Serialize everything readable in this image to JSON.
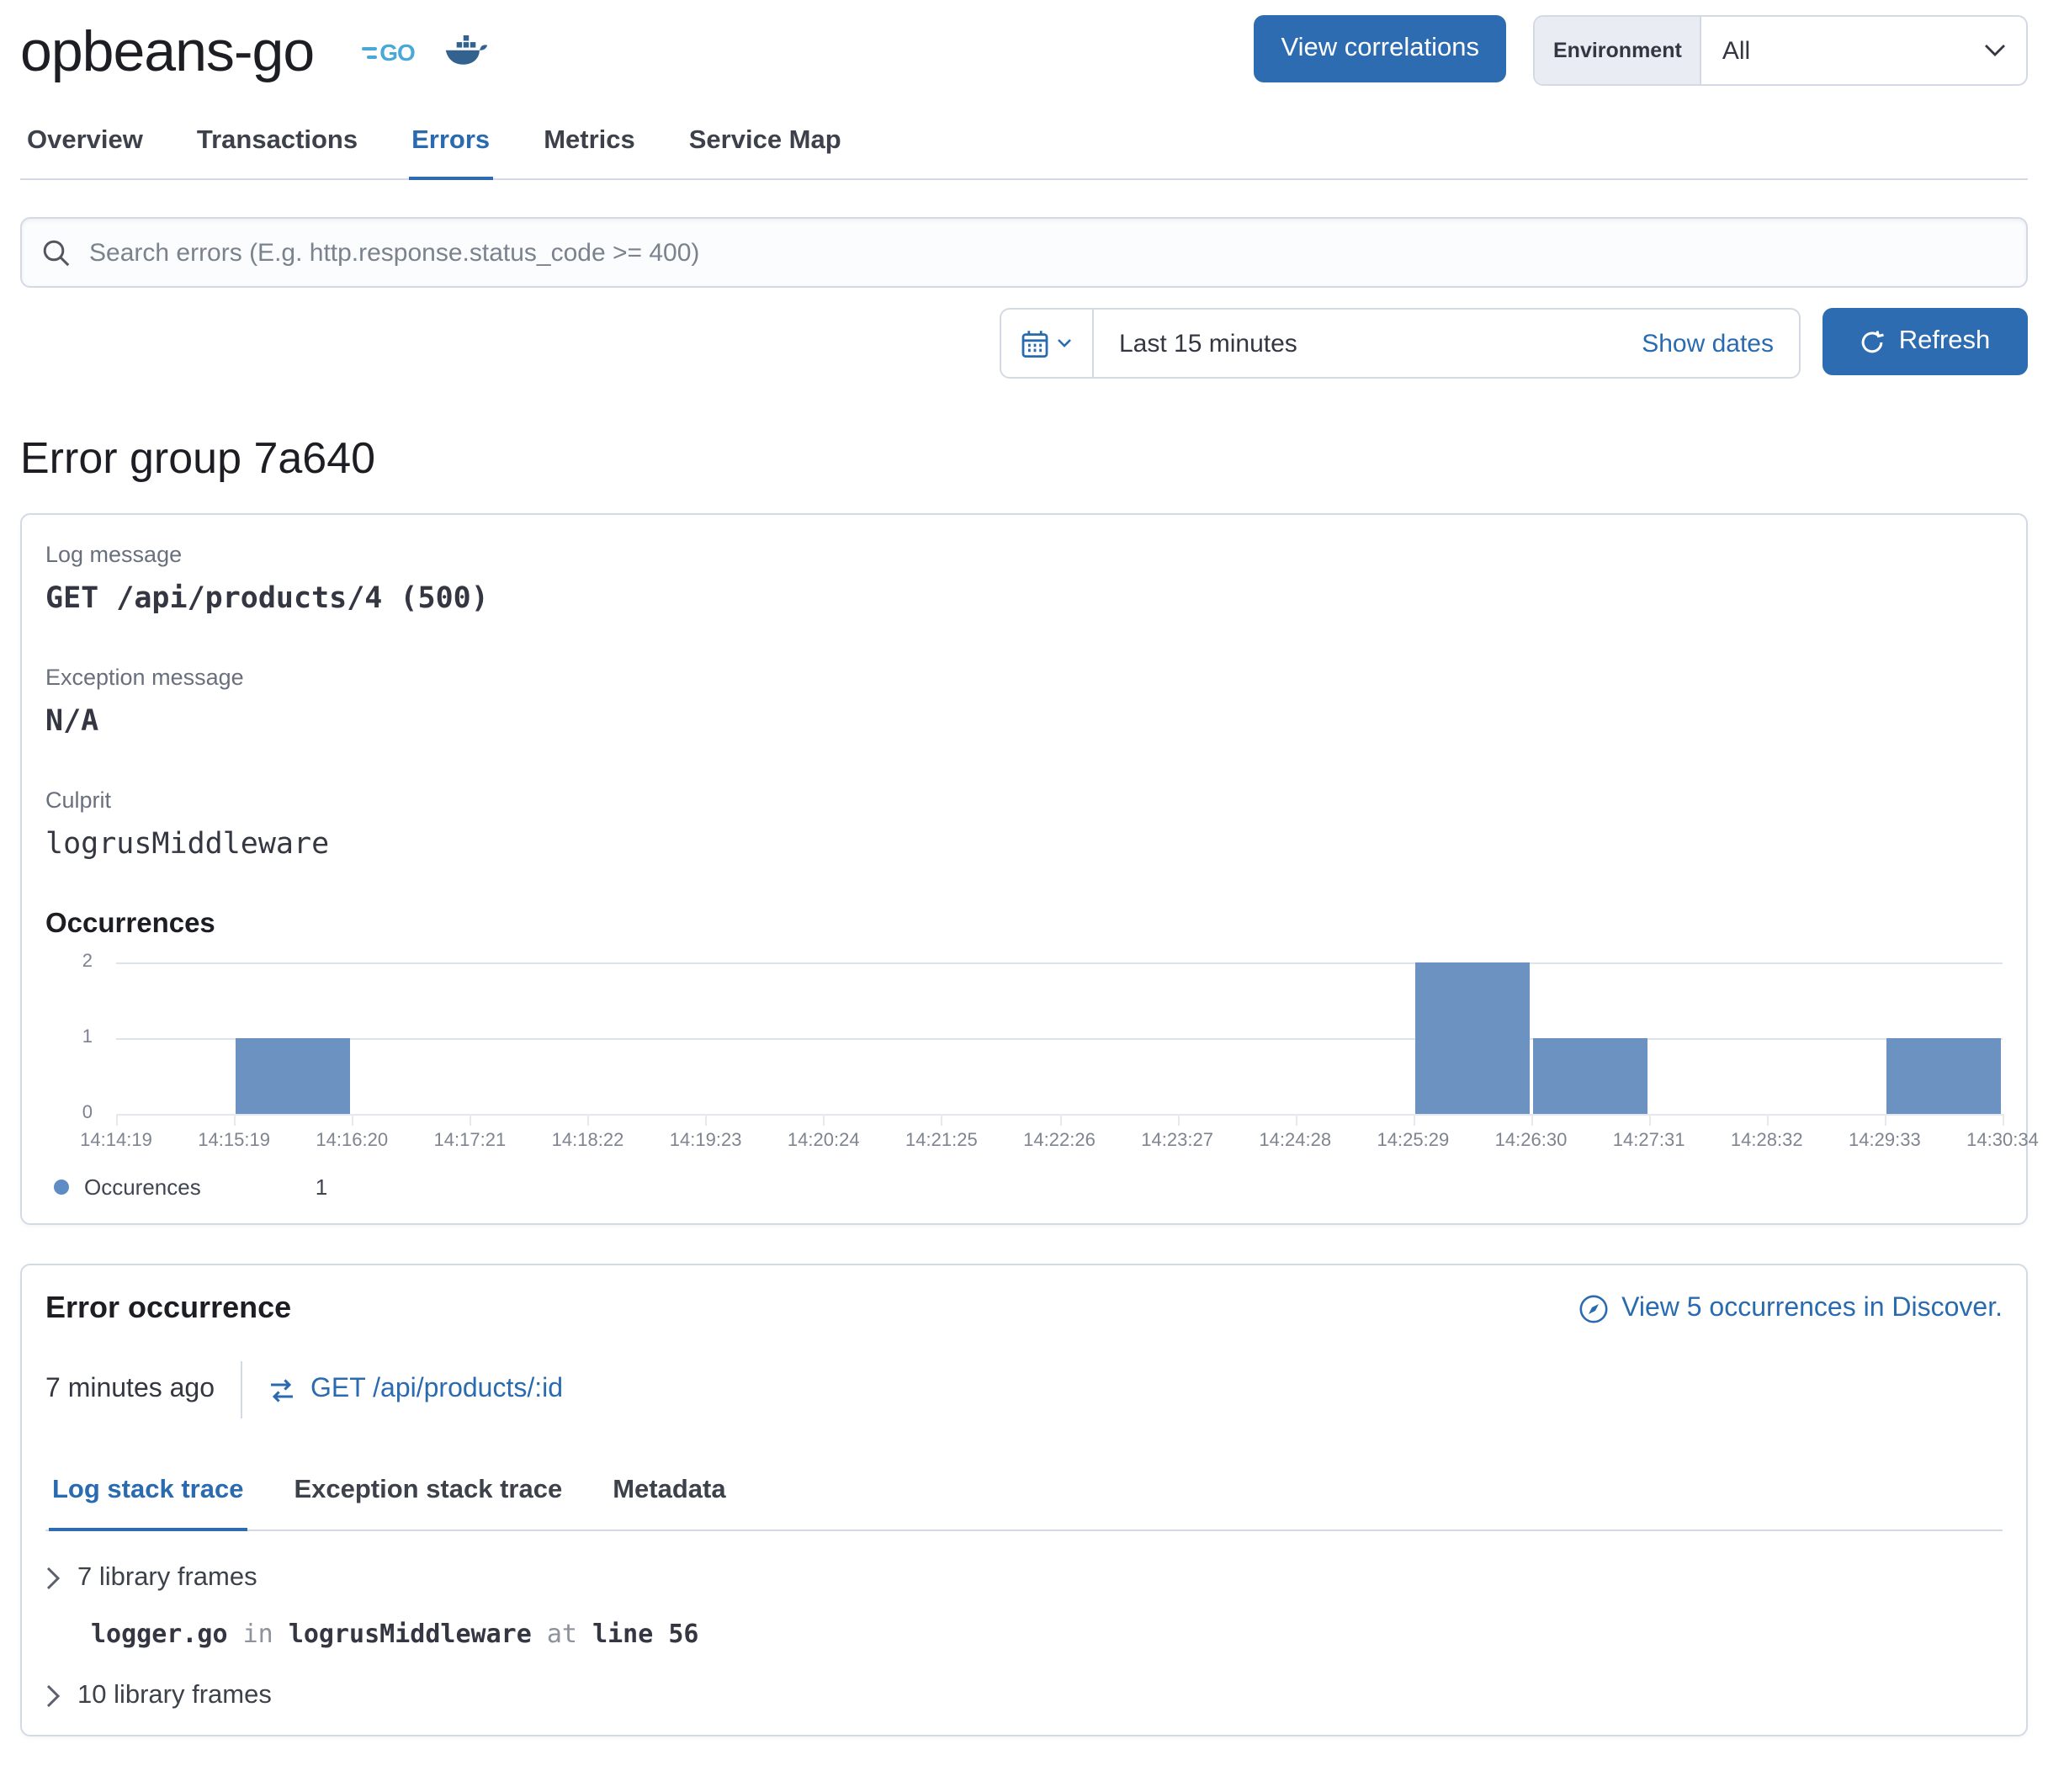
{
  "header": {
    "service_name": "opbeans-go",
    "view_correlations_label": "View correlations",
    "environment_label": "Environment",
    "environment_value": "All"
  },
  "header_tabs": [
    "Overview",
    "Transactions",
    "Errors",
    "Metrics",
    "Service Map"
  ],
  "search": {
    "placeholder": "Search errors (E.g. http.response.status_code >= 400)"
  },
  "datepicker": {
    "range_label": "Last 15 minutes",
    "show_dates_label": "Show dates",
    "refresh_label": "Refresh"
  },
  "page_title": "Error group 7a640",
  "error_group": {
    "log_message_label": "Log message",
    "log_message": "GET /api/products/4 (500)",
    "exception_message_label": "Exception message",
    "exception_message": "N/A",
    "culprit_label": "Culprit",
    "culprit": "logrusMiddleware",
    "occurrences_title": "Occurrences"
  },
  "chart_data": {
    "type": "bar",
    "title": "Occurrences",
    "x_tick_labels": [
      "14:14:19",
      "14:15:19",
      "14:16:20",
      "14:17:21",
      "14:18:22",
      "14:19:23",
      "14:20:24",
      "14:21:25",
      "14:22:26",
      "14:23:27",
      "14:24:28",
      "14:25:29",
      "14:26:30",
      "14:27:31",
      "14:28:32",
      "14:29:33",
      "14:30:34"
    ],
    "values": [
      0,
      1,
      0,
      0,
      0,
      0,
      0,
      0,
      0,
      0,
      0,
      2,
      1,
      0,
      0,
      1
    ],
    "ylim": [
      0,
      2
    ],
    "y_ticks": [
      0,
      1,
      2
    ],
    "grid": "horizontal",
    "legend_position": "bottom-left",
    "legend": {
      "label": "Occurences",
      "value": "1"
    },
    "bar_color": "#6b92c1"
  },
  "error_occurrence": {
    "title": "Error occurrence",
    "discover_link": "View 5 occurrences in Discover.",
    "timestamp": "7 minutes ago",
    "transaction_link": "GET /api/products/:id",
    "tabs": [
      "Log stack trace",
      "Exception stack trace",
      "Metadata"
    ],
    "stack": {
      "group1": "7 library frames",
      "frame_file": "logger.go",
      "frame_in": "in",
      "frame_fn": "logrusMiddleware",
      "frame_at": "at",
      "frame_line": "line 56",
      "group2": "10 library frames"
    }
  },
  "icons": {
    "go_logo": "go-gopher-wordmark",
    "docker_logo": "docker-whale",
    "search": "magnifier",
    "quick_select": "calendar-with-chevron",
    "refresh": "circular-arrow",
    "discover": "compass",
    "transaction": "opposing-arrows",
    "accordion": "chevron-right",
    "select": "chevron-down"
  },
  "colors": {
    "primary_button": "#2e6cb2",
    "link": "#2a6bb0",
    "border": "#d3dae6",
    "bar": "#6b92c1",
    "text": "#343741",
    "subdued": "#69707d"
  }
}
